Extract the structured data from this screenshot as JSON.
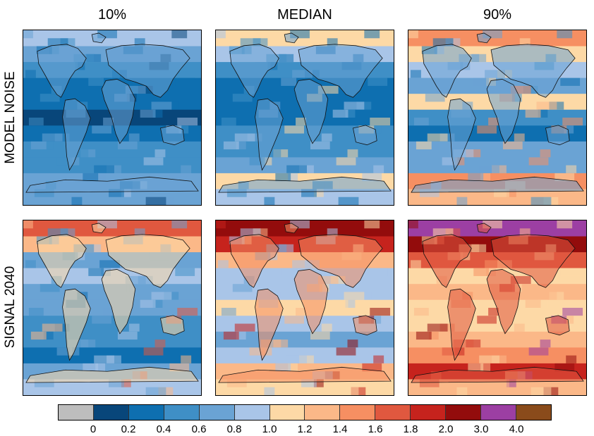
{
  "columns": [
    "10%",
    "MEDIAN",
    "90%"
  ],
  "rows": [
    "MODEL NOISE",
    "SIGNAL 2040"
  ],
  "legend": {
    "colors": [
      "#bdbdbd",
      "#08467a",
      "#0e6fb0",
      "#3f8fc6",
      "#6aa3d4",
      "#a9c5e8",
      "#fdd9a6",
      "#fbb888",
      "#f68f62",
      "#e0583f",
      "#c6231d",
      "#930c0c",
      "#9c3fa3",
      "#8a4b1b"
    ],
    "ticks": [
      "0",
      "0.2",
      "0.4",
      "0.6",
      "0.8",
      "1.0",
      "1.2",
      "1.4",
      "1.6",
      "1.8",
      "2.0",
      "3.0",
      "4.0"
    ]
  },
  "palettes": {
    "noise_10": {
      "base": "#3f8fc6",
      "bands": [
        "#a9c5e8",
        "#6aa3d4",
        "#3f8fc6",
        "#0e6fb0",
        "#0e6fb0",
        "#08467a",
        "#0e6fb0",
        "#3f8fc6",
        "#3f8fc6",
        "#6aa3d4",
        "#6aa3d4"
      ]
    },
    "noise_med": {
      "base": "#0e6fb0",
      "bands": [
        "#fdd9a6",
        "#a9c5e8",
        "#3f8fc6",
        "#0e6fb0",
        "#0e6fb0",
        "#0e6fb0",
        "#3f8fc6",
        "#3f8fc6",
        "#6aa3d4",
        "#fdd9a6",
        "#a9c5e8"
      ]
    },
    "noise_90": {
      "base": "#3f8fc6",
      "bands": [
        "#f68f62",
        "#fdd9a6",
        "#a9c5e8",
        "#6aa3d4",
        "#fdd9a6",
        "#3f8fc6",
        "#0e6fb0",
        "#6aa3d4",
        "#6aa3d4",
        "#f68f62",
        "#fbb888"
      ]
    },
    "sig_10": {
      "base": "#6aa3d4",
      "bands": [
        "#e0583f",
        "#fbb888",
        "#6aa3d4",
        "#a9c5e8",
        "#6aa3d4",
        "#6aa3d4",
        "#3f8fc6",
        "#3f8fc6",
        "#0e6fb0",
        "#6aa3d4",
        "#a9c5e8"
      ]
    },
    "sig_med": {
      "base": "#a9c5e8",
      "bands": [
        "#930c0c",
        "#c6231d",
        "#fbb888",
        "#a9c5e8",
        "#a9c5e8",
        "#fdd9a6",
        "#a9c5e8",
        "#6aa3d4",
        "#a9c5e8",
        "#fbb888",
        "#fdd9a6"
      ]
    },
    "sig_90": {
      "base": "#fdd9a6",
      "bands": [
        "#9c3fa3",
        "#930c0c",
        "#e0583f",
        "#fdd9a6",
        "#fbb888",
        "#fdd9a6",
        "#fdd9a6",
        "#fbb888",
        "#f68f62",
        "#c6231d",
        "#fbb888"
      ]
    }
  },
  "land": {
    "noise_10": "#6aa3d4",
    "noise_med": "#6aa3d4",
    "noise_90": "#6aa3d4",
    "sig_10": "#fdd9a6",
    "sig_med": "#f68f62",
    "sig_90": "#e0583f"
  }
}
